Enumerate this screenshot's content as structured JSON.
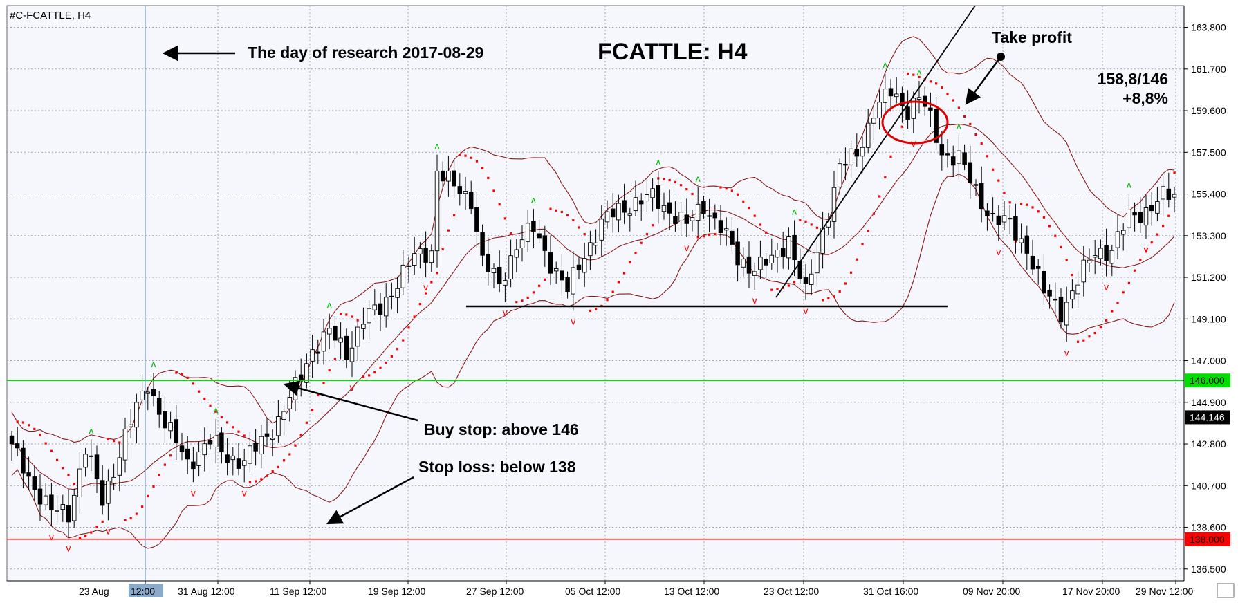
{
  "symbol_label": "#C-FCATTLE, H4",
  "chart_data": {
    "type": "candlestick",
    "title": "FCATTLE: H4",
    "ylim": [
      135.9,
      164.9
    ],
    "y_ticks": [
      "163.800",
      "161.700",
      "159.600",
      "157.500",
      "155.400",
      "153.300",
      "151.200",
      "149.100",
      "147.000",
      "144.900",
      "142.800",
      "140.700",
      "138.600",
      "136.500"
    ],
    "x_ticks": [
      "23 Aug 2017",
      "23 Aug 12:00",
      "31 Aug 12:00",
      "11 Sep 12:00",
      "19 Sep 12:00",
      "27 Sep 12:00",
      "05 Oct 12:00",
      "13 Oct 12:00",
      "23 Oct 12:00",
      "31 Oct 16:00",
      "09 Nov 20:00",
      "17 Nov 20:00",
      "29 Nov 12:00"
    ],
    "horizontal_levels": [
      {
        "value": 146.0,
        "label": "146.000",
        "color": "#00dd00"
      },
      {
        "value": 138.0,
        "label": "138.000",
        "color": "#ff0000"
      }
    ],
    "current_price": {
      "value": 144.146,
      "label": "144.146"
    },
    "price_key_points": [
      [
        0,
        142.6
      ],
      [
        3,
        141.1
      ],
      [
        7,
        139.4
      ],
      [
        10,
        139.3
      ],
      [
        13,
        142.6
      ],
      [
        16,
        139.9
      ],
      [
        20,
        143.2
      ],
      [
        24,
        145.9
      ],
      [
        27,
        143.8
      ],
      [
        31,
        141.9
      ],
      [
        35,
        142.9
      ],
      [
        38,
        142.2
      ],
      [
        41,
        141.9
      ],
      [
        44,
        142.9
      ],
      [
        47,
        144.0
      ],
      [
        50,
        145.6
      ],
      [
        53,
        147.6
      ],
      [
        56,
        148.4
      ],
      [
        59,
        147.4
      ],
      [
        62,
        149.1
      ],
      [
        65,
        149.6
      ],
      [
        68,
        151.0
      ],
      [
        71,
        152.2
      ],
      [
        74,
        152.6
      ],
      [
        75,
        156.6
      ],
      [
        78,
        155.7
      ],
      [
        81,
        155.2
      ],
      [
        83,
        152.0
      ],
      [
        86,
        150.8
      ],
      [
        89,
        152.9
      ],
      [
        92,
        153.6
      ],
      [
        95,
        152.0
      ],
      [
        98,
        150.5
      ],
      [
        101,
        152.4
      ],
      [
        104,
        153.9
      ],
      [
        107,
        154.6
      ],
      [
        110,
        155.0
      ],
      [
        113,
        155.2
      ],
      [
        116,
        154.6
      ],
      [
        119,
        153.8
      ],
      [
        122,
        154.9
      ],
      [
        125,
        153.7
      ],
      [
        128,
        152.1
      ],
      [
        131,
        151.7
      ],
      [
        134,
        152.0
      ],
      [
        137,
        153.2
      ],
      [
        140,
        150.3
      ],
      [
        143,
        153.6
      ],
      [
        146,
        156.7
      ],
      [
        149,
        157.4
      ],
      [
        152,
        159.6
      ],
      [
        155,
        160.5
      ],
      [
        158,
        159.7
      ],
      [
        160,
        160.3
      ],
      [
        162,
        159.1
      ],
      [
        164,
        157.5
      ],
      [
        167,
        157.2
      ],
      [
        170,
        155.5
      ],
      [
        173,
        154.2
      ],
      [
        176,
        153.8
      ],
      [
        179,
        152.7
      ],
      [
        182,
        150.4
      ],
      [
        185,
        149.5
      ],
      [
        188,
        151.0
      ],
      [
        191,
        152.5
      ],
      [
        194,
        152.6
      ],
      [
        197,
        154.2
      ],
      [
        200,
        154.6
      ],
      [
        203,
        155.2
      ]
    ]
  },
  "annotations": {
    "research_day": "The day of research 2017-08-29",
    "take_profit": "Take profit",
    "result_ratio": "158,8/146",
    "result_pct": "+8,8%",
    "buy_stop": "Buy stop: above 146",
    "stop_loss": "Stop loss: below 138"
  },
  "colors": {
    "background": "#f5f7fd",
    "grid": "#9aa3b5",
    "bollinger": "#8b1a1a",
    "sar": "#ff0000",
    "fractal_up": "#00bb00",
    "fractal_down": "#ff0000",
    "support_line": "#000000",
    "trendline": "#000000",
    "vline": "#6ea0cc",
    "tag_bg": "#8aaac9"
  }
}
